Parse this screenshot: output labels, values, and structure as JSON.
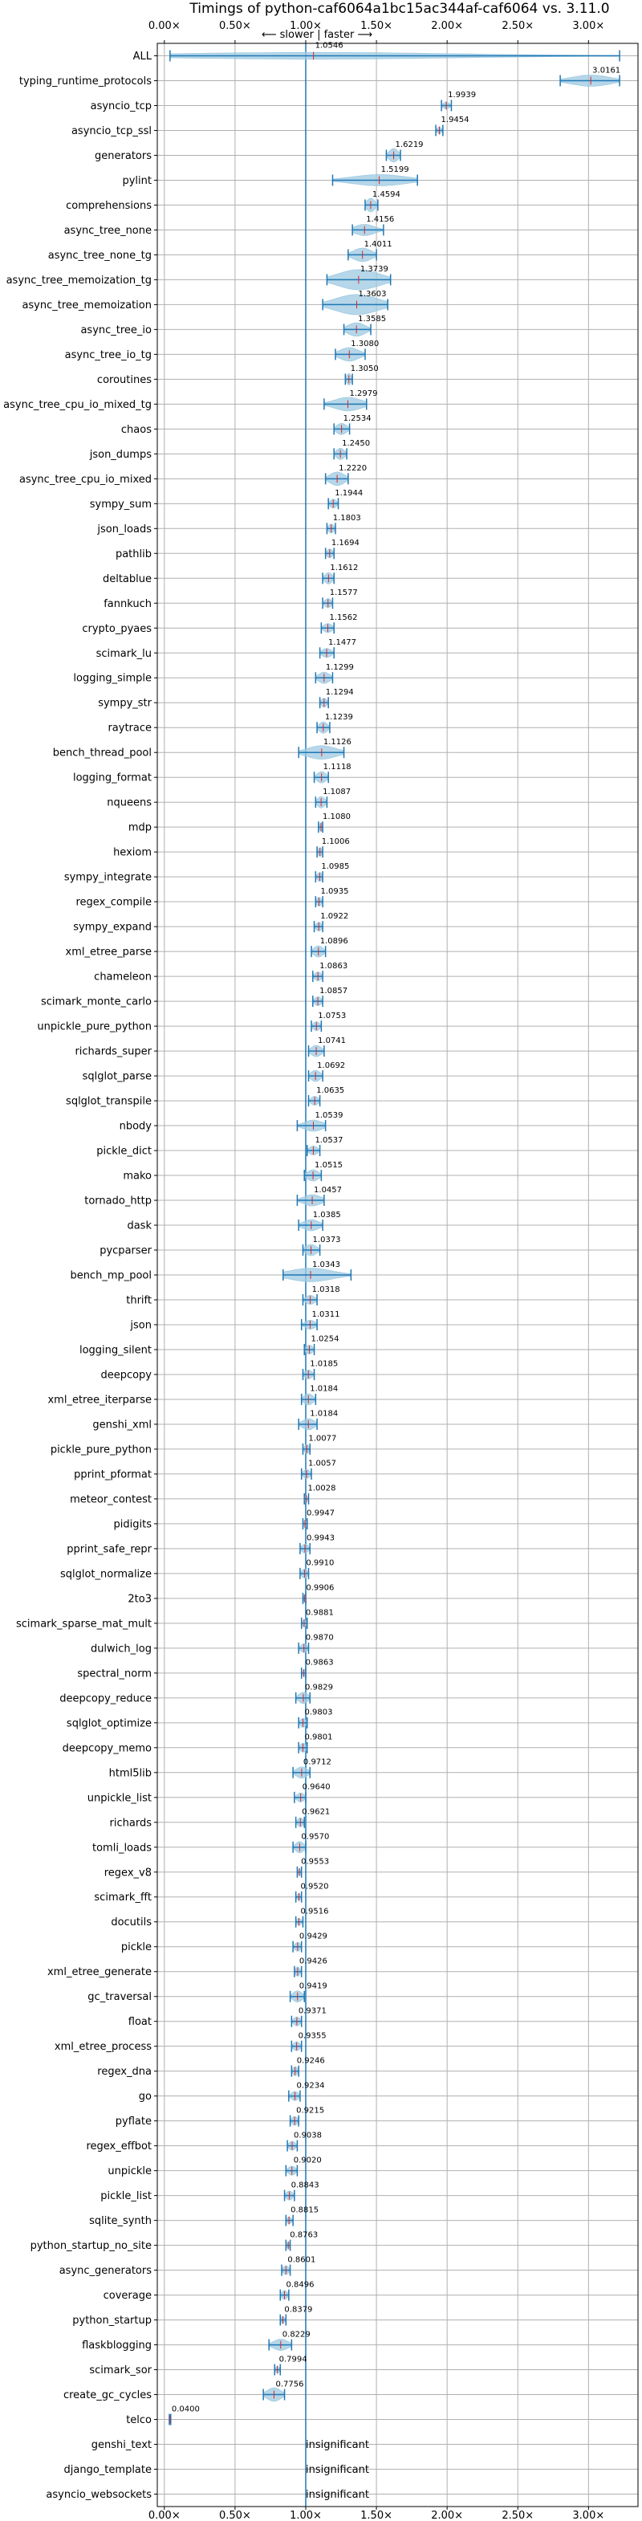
{
  "chart_data": {
    "type": "violin",
    "title": "Timings of python-caf6064a1bc15ac344af-caf6064 vs. 3.11.0",
    "annotation": "⟵ slower | faster ⟶",
    "reference_line": 1.0,
    "xlim": [
      -0.05,
      3.35
    ],
    "x_ticks": [
      0,
      0.5,
      1.0,
      1.5,
      2.0,
      2.5,
      3.0
    ],
    "x_tick_labels": [
      "0.00×",
      "0.50×",
      "1.00×",
      "1.50×",
      "2.00×",
      "2.50×",
      "3.00×"
    ],
    "grid": true,
    "colors": {
      "violin": "#9ecae1",
      "whisker": "#1f77b4",
      "median": "#d62728",
      "reference": "#1f77b4",
      "grid": "#b0b0b0"
    },
    "insignificant_label": "insignificant",
    "series": [
      {
        "name": "ALL",
        "label": "1.0546",
        "value": 1.0546,
        "lo": 0.04,
        "hi": 3.22,
        "spread": 0.3
      },
      {
        "name": "typing_runtime_protocols",
        "label": "3.0161",
        "value": 3.0161,
        "lo": 2.8,
        "hi": 3.22,
        "spread": 0.5
      },
      {
        "name": "asyncio_tcp",
        "label": "1.9939",
        "value": 1.9939,
        "lo": 1.96,
        "hi": 2.03,
        "spread": 0.3
      },
      {
        "name": "asyncio_tcp_ssl",
        "label": "1.9454",
        "value": 1.9454,
        "lo": 1.92,
        "hi": 1.97,
        "spread": 0.3
      },
      {
        "name": "generators",
        "label": "1.6219",
        "value": 1.6219,
        "lo": 1.57,
        "hi": 1.67,
        "spread": 0.6
      },
      {
        "name": "pylint",
        "label": "1.5199",
        "value": 1.5199,
        "lo": 1.19,
        "hi": 1.79,
        "spread": 0.5
      },
      {
        "name": "comprehensions",
        "label": "1.4594",
        "value": 1.4594,
        "lo": 1.42,
        "hi": 1.51,
        "spread": 0.6
      },
      {
        "name": "async_tree_none",
        "label": "1.4156",
        "value": 1.4156,
        "lo": 1.33,
        "hi": 1.55,
        "spread": 0.5
      },
      {
        "name": "async_tree_none_tg",
        "label": "1.4011",
        "value": 1.4011,
        "lo": 1.3,
        "hi": 1.5,
        "spread": 0.6
      },
      {
        "name": "async_tree_memoization_tg",
        "label": "1.3739",
        "value": 1.3739,
        "lo": 1.15,
        "hi": 1.6,
        "spread": 0.9
      },
      {
        "name": "async_tree_memoization",
        "label": "1.3603",
        "value": 1.3603,
        "lo": 1.12,
        "hi": 1.58,
        "spread": 0.9
      },
      {
        "name": "async_tree_io",
        "label": "1.3585",
        "value": 1.3585,
        "lo": 1.27,
        "hi": 1.46,
        "spread": 0.6
      },
      {
        "name": "async_tree_io_tg",
        "label": "1.3080",
        "value": 1.308,
        "lo": 1.21,
        "hi": 1.42,
        "spread": 0.6
      },
      {
        "name": "coroutines",
        "label": "1.3050",
        "value": 1.305,
        "lo": 1.28,
        "hi": 1.33,
        "spread": 0.5
      },
      {
        "name": "async_tree_cpu_io_mixed_tg",
        "label": "1.2979",
        "value": 1.2979,
        "lo": 1.13,
        "hi": 1.43,
        "spread": 0.6
      },
      {
        "name": "chaos",
        "label": "1.2534",
        "value": 1.2534,
        "lo": 1.2,
        "hi": 1.31,
        "spread": 0.5
      },
      {
        "name": "json_dumps",
        "label": "1.2450",
        "value": 1.245,
        "lo": 1.2,
        "hi": 1.29,
        "spread": 0.5
      },
      {
        "name": "async_tree_cpu_io_mixed",
        "label": "1.2220",
        "value": 1.222,
        "lo": 1.14,
        "hi": 1.3,
        "spread": 0.6
      },
      {
        "name": "sympy_sum",
        "label": "1.1944",
        "value": 1.1944,
        "lo": 1.16,
        "hi": 1.23,
        "spread": 0.4
      },
      {
        "name": "json_loads",
        "label": "1.1803",
        "value": 1.1803,
        "lo": 1.15,
        "hi": 1.21,
        "spread": 0.4
      },
      {
        "name": "pathlib",
        "label": "1.1694",
        "value": 1.1694,
        "lo": 1.14,
        "hi": 1.2,
        "spread": 0.4
      },
      {
        "name": "deltablue",
        "label": "1.1612",
        "value": 1.1612,
        "lo": 1.12,
        "hi": 1.2,
        "spread": 0.5
      },
      {
        "name": "fannkuch",
        "label": "1.1577",
        "value": 1.1577,
        "lo": 1.12,
        "hi": 1.19,
        "spread": 0.4
      },
      {
        "name": "crypto_pyaes",
        "label": "1.1562",
        "value": 1.1562,
        "lo": 1.11,
        "hi": 1.2,
        "spread": 0.4
      },
      {
        "name": "scimark_lu",
        "label": "1.1477",
        "value": 1.1477,
        "lo": 1.1,
        "hi": 1.2,
        "spread": 0.4
      },
      {
        "name": "logging_simple",
        "label": "1.1299",
        "value": 1.1299,
        "lo": 1.07,
        "hi": 1.19,
        "spread": 0.5
      },
      {
        "name": "sympy_str",
        "label": "1.1294",
        "value": 1.1294,
        "lo": 1.1,
        "hi": 1.16,
        "spread": 0.4
      },
      {
        "name": "raytrace",
        "label": "1.1239",
        "value": 1.1239,
        "lo": 1.08,
        "hi": 1.17,
        "spread": 0.5
      },
      {
        "name": "bench_thread_pool",
        "label": "1.1126",
        "value": 1.1126,
        "lo": 0.95,
        "hi": 1.27,
        "spread": 0.6
      },
      {
        "name": "logging_format",
        "label": "1.1118",
        "value": 1.1118,
        "lo": 1.06,
        "hi": 1.16,
        "spread": 0.5
      },
      {
        "name": "nqueens",
        "label": "1.1087",
        "value": 1.1087,
        "lo": 1.07,
        "hi": 1.15,
        "spread": 0.5
      },
      {
        "name": "mdp",
        "label": "1.1080",
        "value": 1.108,
        "lo": 1.09,
        "hi": 1.12,
        "spread": 0.4
      },
      {
        "name": "hexiom",
        "label": "1.1006",
        "value": 1.1006,
        "lo": 1.08,
        "hi": 1.12,
        "spread": 0.4
      },
      {
        "name": "sympy_integrate",
        "label": "1.0985",
        "value": 1.0985,
        "lo": 1.07,
        "hi": 1.12,
        "spread": 0.4
      },
      {
        "name": "regex_compile",
        "label": "1.0935",
        "value": 1.0935,
        "lo": 1.07,
        "hi": 1.12,
        "spread": 0.4
      },
      {
        "name": "sympy_expand",
        "label": "1.0922",
        "value": 1.0922,
        "lo": 1.06,
        "hi": 1.12,
        "spread": 0.4
      },
      {
        "name": "xml_etree_parse",
        "label": "1.0896",
        "value": 1.0896,
        "lo": 1.04,
        "hi": 1.14,
        "spread": 0.5
      },
      {
        "name": "chameleon",
        "label": "1.0863",
        "value": 1.0863,
        "lo": 1.05,
        "hi": 1.12,
        "spread": 0.4
      },
      {
        "name": "scimark_monte_carlo",
        "label": "1.0857",
        "value": 1.0857,
        "lo": 1.05,
        "hi": 1.12,
        "spread": 0.4
      },
      {
        "name": "unpickle_pure_python",
        "label": "1.0753",
        "value": 1.0753,
        "lo": 1.04,
        "hi": 1.11,
        "spread": 0.4
      },
      {
        "name": "richards_super",
        "label": "1.0741",
        "value": 1.0741,
        "lo": 1.02,
        "hi": 1.13,
        "spread": 0.5
      },
      {
        "name": "sqlglot_parse",
        "label": "1.0692",
        "value": 1.0692,
        "lo": 1.02,
        "hi": 1.12,
        "spread": 0.5
      },
      {
        "name": "sqlglot_transpile",
        "label": "1.0635",
        "value": 1.0635,
        "lo": 1.02,
        "hi": 1.1,
        "spread": 0.4
      },
      {
        "name": "nbody",
        "label": "1.0539",
        "value": 1.0539,
        "lo": 0.94,
        "hi": 1.14,
        "spread": 0.5
      },
      {
        "name": "pickle_dict",
        "label": "1.0537",
        "value": 1.0537,
        "lo": 1.01,
        "hi": 1.1,
        "spread": 0.4
      },
      {
        "name": "mako",
        "label": "1.0515",
        "value": 1.0515,
        "lo": 0.99,
        "hi": 1.11,
        "spread": 0.5
      },
      {
        "name": "tornado_http",
        "label": "1.0457",
        "value": 1.0457,
        "lo": 0.94,
        "hi": 1.13,
        "spread": 0.5
      },
      {
        "name": "dask",
        "label": "1.0385",
        "value": 1.0385,
        "lo": 0.95,
        "hi": 1.12,
        "spread": 0.5
      },
      {
        "name": "pycparser",
        "label": "1.0373",
        "value": 1.0373,
        "lo": 0.98,
        "hi": 1.1,
        "spread": 0.5
      },
      {
        "name": "bench_mp_pool",
        "label": "1.0343",
        "value": 1.0343,
        "lo": 0.84,
        "hi": 1.32,
        "spread": 0.6
      },
      {
        "name": "thrift",
        "label": "1.0318",
        "value": 1.0318,
        "lo": 0.98,
        "hi": 1.08,
        "spread": 0.4
      },
      {
        "name": "json",
        "label": "1.0311",
        "value": 1.0311,
        "lo": 0.97,
        "hi": 1.08,
        "spread": 0.4
      },
      {
        "name": "logging_silent",
        "label": "1.0254",
        "value": 1.0254,
        "lo": 0.99,
        "hi": 1.06,
        "spread": 0.4
      },
      {
        "name": "deepcopy",
        "label": "1.0185",
        "value": 1.0185,
        "lo": 0.98,
        "hi": 1.06,
        "spread": 0.4
      },
      {
        "name": "xml_etree_iterparse",
        "label": "1.0184",
        "value": 1.0184,
        "lo": 0.97,
        "hi": 1.07,
        "spread": 0.5
      },
      {
        "name": "genshi_xml",
        "label": "1.0184",
        "value": 1.0184,
        "lo": 0.95,
        "hi": 1.08,
        "spread": 0.5
      },
      {
        "name": "pickle_pure_python",
        "label": "1.0077",
        "value": 1.0077,
        "lo": 0.98,
        "hi": 1.03,
        "spread": 0.4
      },
      {
        "name": "pprint_pformat",
        "label": "1.0057",
        "value": 1.0057,
        "lo": 0.97,
        "hi": 1.04,
        "spread": 0.4
      },
      {
        "name": "meteor_contest",
        "label": "1.0028",
        "value": 1.0028,
        "lo": 0.99,
        "hi": 1.02,
        "spread": 0.3
      },
      {
        "name": "pidigits",
        "label": "0.9947",
        "value": 0.9947,
        "lo": 0.98,
        "hi": 1.01,
        "spread": 0.3
      },
      {
        "name": "pprint_safe_repr",
        "label": "0.9943",
        "value": 0.9943,
        "lo": 0.96,
        "hi": 1.03,
        "spread": 0.4
      },
      {
        "name": "sqlglot_normalize",
        "label": "0.9910",
        "value": 0.991,
        "lo": 0.96,
        "hi": 1.02,
        "spread": 0.4
      },
      {
        "name": "2to3",
        "label": "0.9906",
        "value": 0.9906,
        "lo": 0.98,
        "hi": 1.0,
        "spread": 0.3
      },
      {
        "name": "scimark_sparse_mat_mult",
        "label": "0.9881",
        "value": 0.9881,
        "lo": 0.97,
        "hi": 1.01,
        "spread": 0.3
      },
      {
        "name": "dulwich_log",
        "label": "0.9870",
        "value": 0.987,
        "lo": 0.95,
        "hi": 1.02,
        "spread": 0.4
      },
      {
        "name": "spectral_norm",
        "label": "0.9863",
        "value": 0.9863,
        "lo": 0.97,
        "hi": 1.0,
        "spread": 0.3
      },
      {
        "name": "deepcopy_reduce",
        "label": "0.9829",
        "value": 0.9829,
        "lo": 0.93,
        "hi": 1.03,
        "spread": 0.5
      },
      {
        "name": "sqlglot_optimize",
        "label": "0.9803",
        "value": 0.9803,
        "lo": 0.95,
        "hi": 1.01,
        "spread": 0.4
      },
      {
        "name": "deepcopy_memo",
        "label": "0.9801",
        "value": 0.9801,
        "lo": 0.95,
        "hi": 1.01,
        "spread": 0.4
      },
      {
        "name": "html5lib",
        "label": "0.9712",
        "value": 0.9712,
        "lo": 0.91,
        "hi": 1.03,
        "spread": 0.5
      },
      {
        "name": "unpickle_list",
        "label": "0.9640",
        "value": 0.964,
        "lo": 0.92,
        "hi": 1.0,
        "spread": 0.4
      },
      {
        "name": "richards",
        "label": "0.9621",
        "value": 0.9621,
        "lo": 0.93,
        "hi": 0.99,
        "spread": 0.4
      },
      {
        "name": "tomli_loads",
        "label": "0.9570",
        "value": 0.957,
        "lo": 0.91,
        "hi": 1.0,
        "spread": 0.5
      },
      {
        "name": "regex_v8",
        "label": "0.9553",
        "value": 0.9553,
        "lo": 0.94,
        "hi": 0.97,
        "spread": 0.3
      },
      {
        "name": "scimark_fft",
        "label": "0.9520",
        "value": 0.952,
        "lo": 0.93,
        "hi": 0.97,
        "spread": 0.3
      },
      {
        "name": "docutils",
        "label": "0.9516",
        "value": 0.9516,
        "lo": 0.93,
        "hi": 0.98,
        "spread": 0.3
      },
      {
        "name": "pickle",
        "label": "0.9429",
        "value": 0.9429,
        "lo": 0.91,
        "hi": 0.97,
        "spread": 0.4
      },
      {
        "name": "xml_etree_generate",
        "label": "0.9426",
        "value": 0.9426,
        "lo": 0.92,
        "hi": 0.97,
        "spread": 0.4
      },
      {
        "name": "gc_traversal",
        "label": "0.9419",
        "value": 0.9419,
        "lo": 0.89,
        "hi": 0.99,
        "spread": 0.5
      },
      {
        "name": "float",
        "label": "0.9371",
        "value": 0.9371,
        "lo": 0.9,
        "hi": 0.97,
        "spread": 0.4
      },
      {
        "name": "xml_etree_process",
        "label": "0.9355",
        "value": 0.9355,
        "lo": 0.9,
        "hi": 0.97,
        "spread": 0.4
      },
      {
        "name": "regex_dna",
        "label": "0.9246",
        "value": 0.9246,
        "lo": 0.9,
        "hi": 0.95,
        "spread": 0.4
      },
      {
        "name": "go",
        "label": "0.9234",
        "value": 0.9234,
        "lo": 0.88,
        "hi": 0.96,
        "spread": 0.4
      },
      {
        "name": "pyflate",
        "label": "0.9215",
        "value": 0.9215,
        "lo": 0.89,
        "hi": 0.95,
        "spread": 0.4
      },
      {
        "name": "regex_effbot",
        "label": "0.9038",
        "value": 0.9038,
        "lo": 0.87,
        "hi": 0.94,
        "spread": 0.4
      },
      {
        "name": "unpickle",
        "label": "0.9020",
        "value": 0.902,
        "lo": 0.86,
        "hi": 0.94,
        "spread": 0.4
      },
      {
        "name": "pickle_list",
        "label": "0.8843",
        "value": 0.8843,
        "lo": 0.85,
        "hi": 0.92,
        "spread": 0.4
      },
      {
        "name": "sqlite_synth",
        "label": "0.8815",
        "value": 0.8815,
        "lo": 0.86,
        "hi": 0.91,
        "spread": 0.3
      },
      {
        "name": "python_startup_no_site",
        "label": "0.8763",
        "value": 0.8763,
        "lo": 0.86,
        "hi": 0.89,
        "spread": 0.3
      },
      {
        "name": "async_generators",
        "label": "0.8601",
        "value": 0.8601,
        "lo": 0.83,
        "hi": 0.89,
        "spread": 0.4
      },
      {
        "name": "coverage",
        "label": "0.8496",
        "value": 0.8496,
        "lo": 0.82,
        "hi": 0.88,
        "spread": 0.4
      },
      {
        "name": "python_startup",
        "label": "0.8379",
        "value": 0.8379,
        "lo": 0.82,
        "hi": 0.86,
        "spread": 0.3
      },
      {
        "name": "flaskblogging",
        "label": "0.8229",
        "value": 0.8229,
        "lo": 0.74,
        "hi": 0.9,
        "spread": 0.5
      },
      {
        "name": "scimark_sor",
        "label": "0.7994",
        "value": 0.7994,
        "lo": 0.78,
        "hi": 0.82,
        "spread": 0.3
      },
      {
        "name": "create_gc_cycles",
        "label": "0.7756",
        "value": 0.7756,
        "lo": 0.7,
        "hi": 0.85,
        "spread": 0.6
      },
      {
        "name": "telco",
        "label": "0.0400",
        "value": 0.04,
        "lo": 0.035,
        "hi": 0.045,
        "spread": 0.3
      },
      {
        "name": "genshi_text",
        "insignificant": true
      },
      {
        "name": "django_template",
        "insignificant": true
      },
      {
        "name": "asyncio_websockets",
        "insignificant": true
      }
    ]
  }
}
